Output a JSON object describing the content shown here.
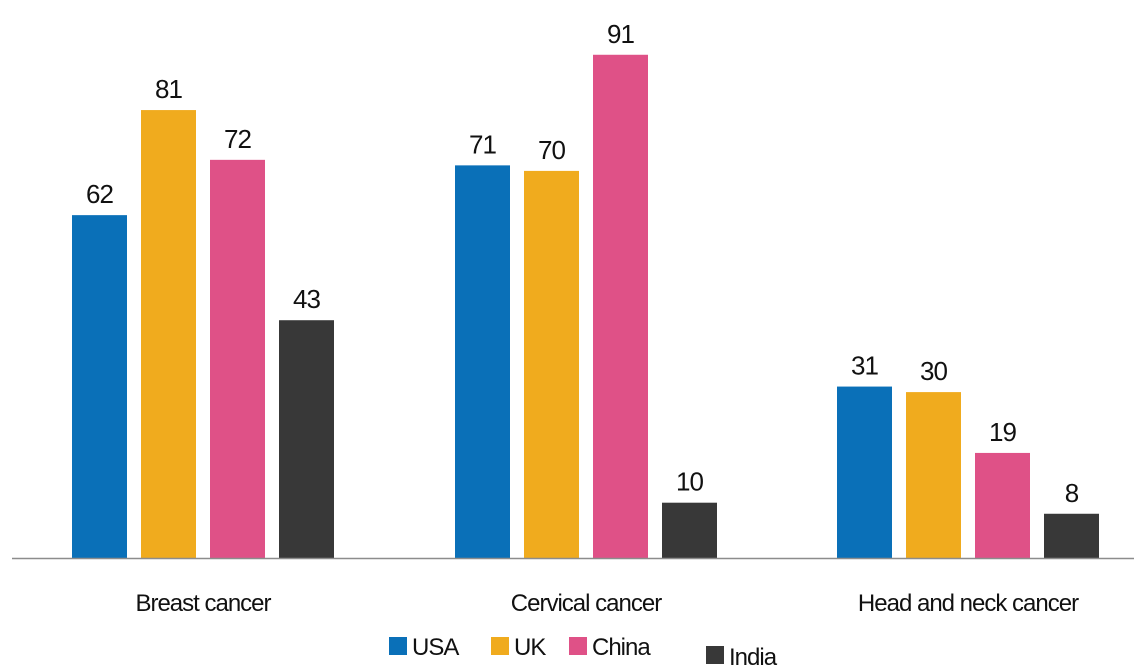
{
  "chart_data": {
    "type": "bar",
    "categories": [
      "Breast cancer",
      "Cervical cancer",
      "Head and neck cancer"
    ],
    "series": [
      {
        "name": "USA",
        "values": [
          62,
          71,
          31
        ],
        "color": "#0a70b8"
      },
      {
        "name": "UK",
        "values": [
          81,
          70,
          30
        ],
        "color": "#f0ab1e"
      },
      {
        "name": "China",
        "values": [
          72,
          91,
          19
        ],
        "color": "#df5187"
      },
      {
        "name": "India",
        "values": [
          43,
          10,
          8
        ],
        "color": "#383838"
      }
    ],
    "data_labels": true,
    "ylim": [
      0,
      100
    ],
    "grid": false,
    "legend": "bottom",
    "axis_color": "#8c8c8c"
  }
}
